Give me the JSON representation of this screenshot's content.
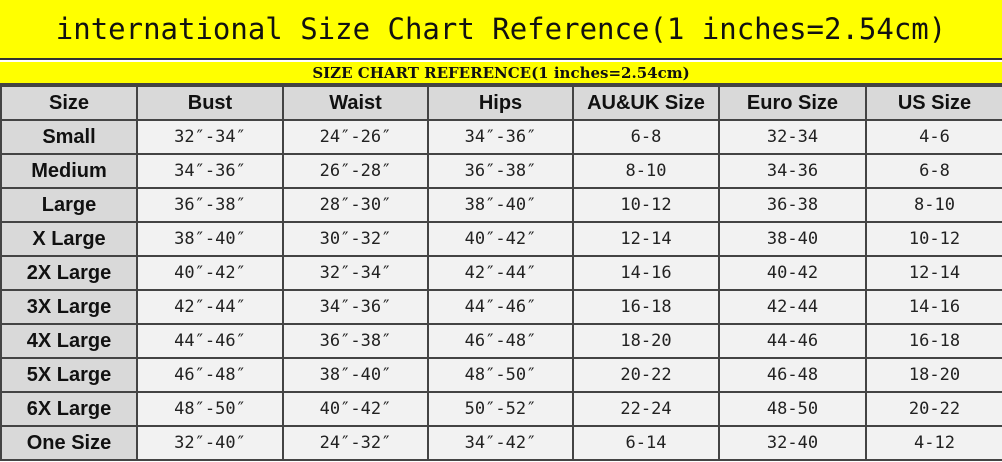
{
  "title": "international Size Chart Reference(1 inches=2.54cm)",
  "subtitle": "SIZE CHART REFERENCE(1 inches=2.54cm)",
  "headers": [
    "Size",
    "Bust",
    "Waist",
    "Hips",
    "AU&UK Size",
    "Euro Size",
    "US Size"
  ],
  "rows": [
    [
      "Small",
      "32″-34″",
      "24″-26″",
      "34″-36″",
      "6-8",
      "32-34",
      "4-6"
    ],
    [
      "Medium",
      "34″-36″",
      "26″-28″",
      "36″-38″",
      "8-10",
      "34-36",
      "6-8"
    ],
    [
      "Large",
      "36″-38″",
      "28″-30″",
      "38″-40″",
      "10-12",
      "36-38",
      "8-10"
    ],
    [
      "X Large",
      "38″-40″",
      "30″-32″",
      "40″-42″",
      "12-14",
      "38-40",
      "10-12"
    ],
    [
      "2X Large",
      "40″-42″",
      "32″-34″",
      "42″-44″",
      "14-16",
      "40-42",
      "12-14"
    ],
    [
      "3X Large",
      "42″-44″",
      "34″-36″",
      "44″-46″",
      "16-18",
      "42-44",
      "14-16"
    ],
    [
      "4X Large",
      "44″-46″",
      "36″-38″",
      "46″-48″",
      "18-20",
      "44-46",
      "16-18"
    ],
    [
      "5X Large",
      "46″-48″",
      "38″-40″",
      "48″-50″",
      "20-22",
      "46-48",
      "18-20"
    ],
    [
      "6X Large",
      "48″-50″",
      "40″-42″",
      "50″-52″",
      "22-24",
      "48-50",
      "20-22"
    ],
    [
      "One Size",
      "32″-40″",
      "24″-32″",
      "34″-42″",
      "6-14",
      "32-40",
      "4-12"
    ]
  ],
  "colors": {
    "banner": "#ffff00",
    "header_bg": "#d9d9d9",
    "cell_bg": "#f2f2f2"
  }
}
